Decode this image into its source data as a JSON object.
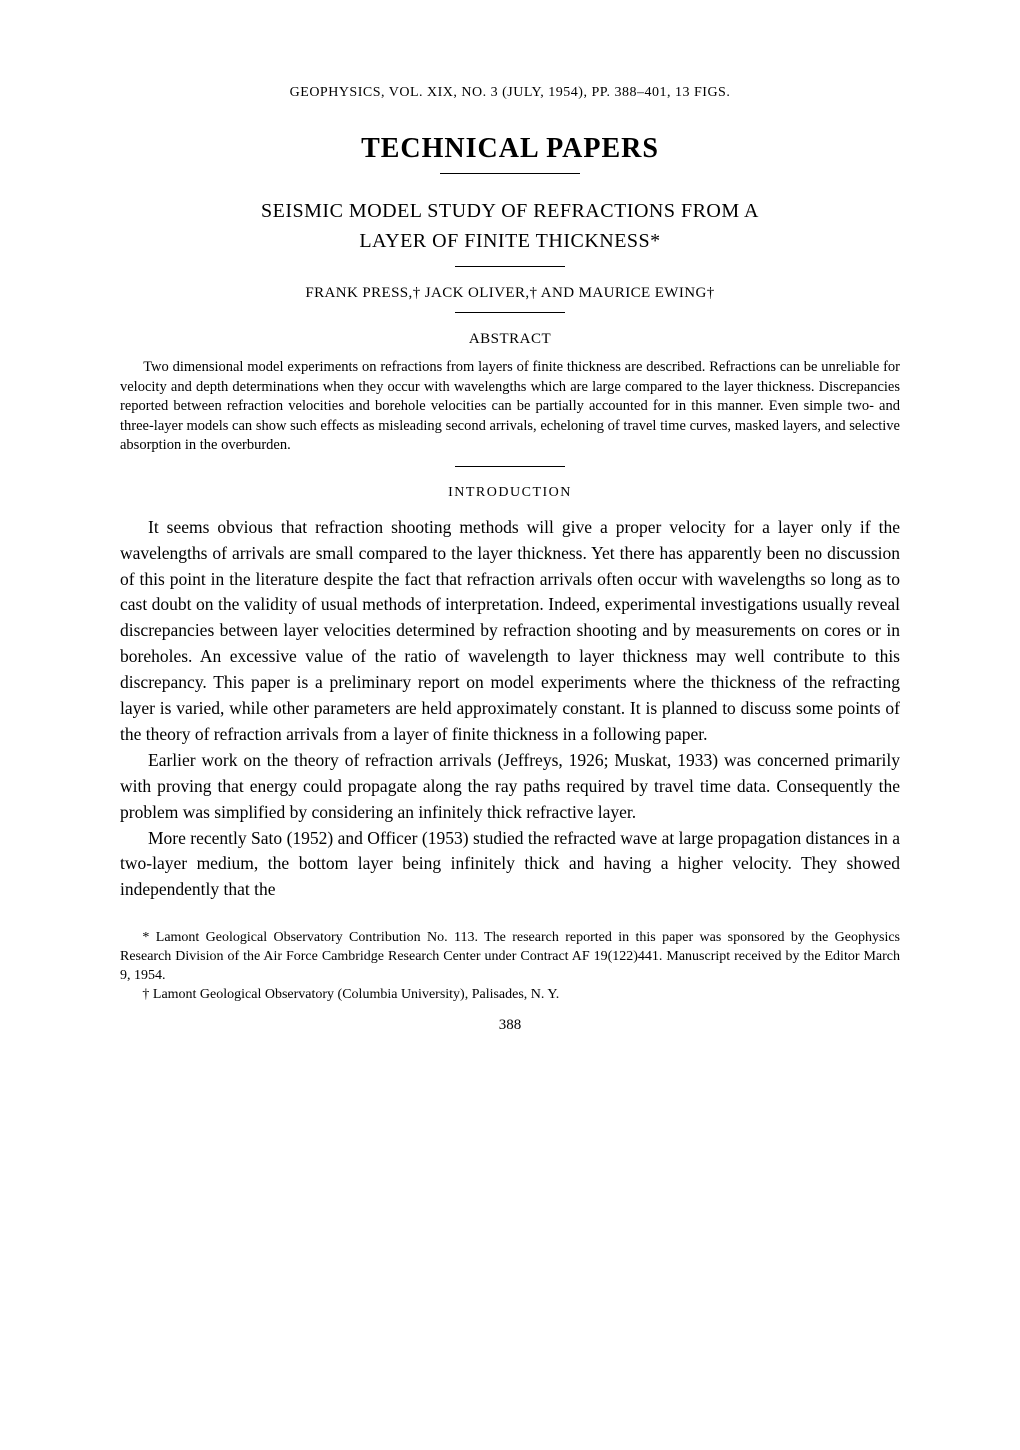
{
  "running_header": "GEOPHYSICS, VOL. XIX, NO. 3 (JULY, 1954), PP. 388–401, 13 FIGS.",
  "section_title": "TECHNICAL PAPERS",
  "paper_title_line1": "SEISMIC MODEL STUDY OF REFRACTIONS FROM A",
  "paper_title_line2": "LAYER OF FINITE THICKNESS*",
  "authors": "FRANK PRESS,† JACK OLIVER,† AND MAURICE EWING†",
  "abstract_heading": "ABSTRACT",
  "abstract_body": "Two dimensional model experiments on refractions from layers of finite thickness are described. Refractions can be unreliable for velocity and depth determinations when they occur with wavelengths which are large compared to the layer thickness. Discrepancies reported between refraction velocities and borehole velocities can be partially accounted for in this manner. Even simple two- and three-layer models can show such effects as misleading second arrivals, echeloning of travel time curves, masked layers, and selective absorption in the overburden.",
  "intro_heading": "INTRODUCTION",
  "body_p1": "It seems obvious that refraction shooting methods will give a proper velocity for a layer only if the wavelengths of arrivals are small compared to the layer thickness. Yet there has apparently been no discussion of this point in the literature despite the fact that refraction arrivals often occur with wavelengths so long as to cast doubt on the validity of usual methods of interpretation. Indeed, experimental investigations usually reveal discrepancies between layer velocities determined by refraction shooting and by measurements on cores or in boreholes. An excessive value of the ratio of wavelength to layer thickness may well contribute to this discrepancy. This paper is a preliminary report on model experiments where the thickness of the refracting layer is varied, while other parameters are held approximately constant. It is planned to discuss some points of the theory of refraction arrivals from a layer of finite thickness in a following paper.",
  "body_p2": "Earlier work on the theory of refraction arrivals (Jeffreys, 1926; Muskat, 1933) was concerned primarily with proving that energy could propagate along the ray paths required by travel time data. Consequently the problem was simplified by considering an infinitely thick refractive layer.",
  "body_p3": "More recently Sato (1952) and Officer (1953) studied the refracted wave at large propagation distances in a two-layer medium, the bottom layer being infinitely thick and having a higher velocity. They showed independently that the",
  "footnote1": "* Lamont Geological Observatory Contribution No. 113. The research reported in this paper was sponsored by the Geophysics Research Division of the Air Force Cambridge Research Center under Contract AF 19(122)441. Manuscript received by the Editor March 9, 1954.",
  "footnote2": "† Lamont Geological Observatory (Columbia University), Palisades, N. Y.",
  "page_number": "388"
}
